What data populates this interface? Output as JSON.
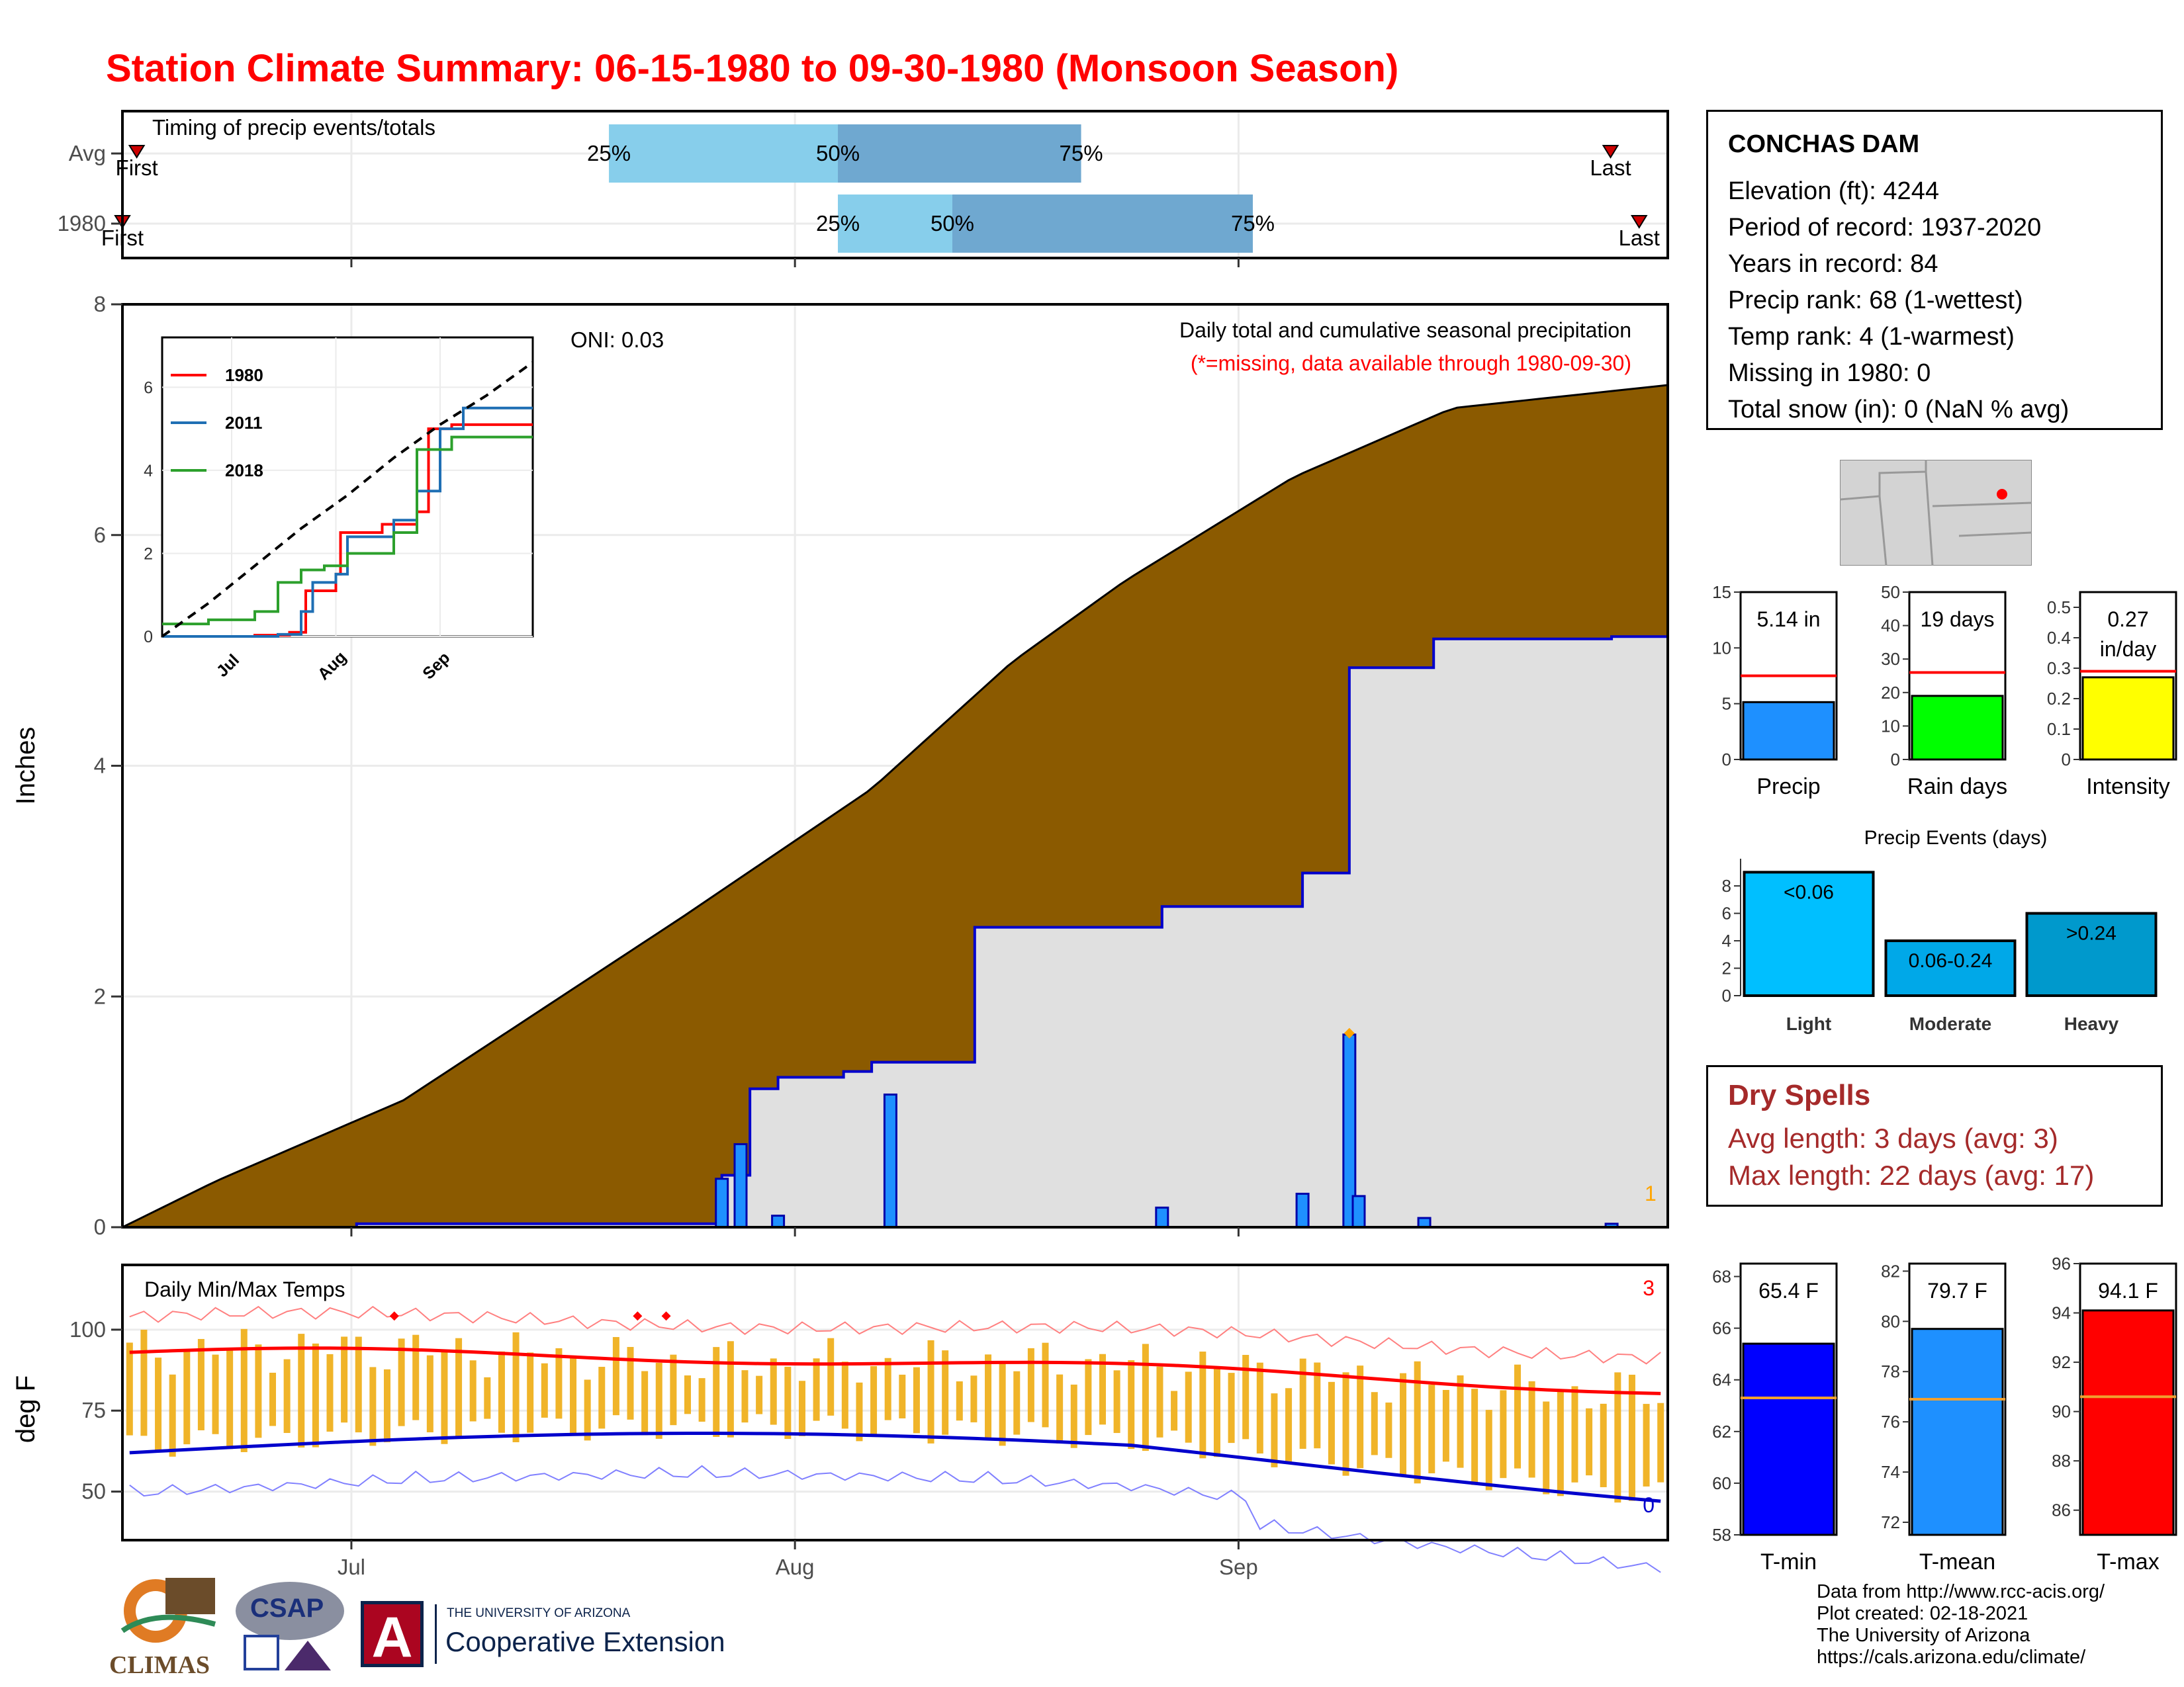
{
  "title": "Station Climate Summary: 06-15-1980 to 09-30-1980 (Monsoon Season)",
  "station": {
    "name": "CONCHAS DAM",
    "lines": [
      "Elevation (ft): 4244",
      "Period of record: 1937-2020",
      "Years in record: 84",
      "Precip rank: 68 (1-wettest)",
      "Temp rank: 4 (1-warmest)",
      "Missing in 1980: 0",
      "Total snow (in): 0 (NaN % avg)"
    ]
  },
  "dry_spells": {
    "heading": "Dry Spells",
    "avg_length": "Avg length: 3 days (avg: 3)",
    "max_length": "Max length: 22 days (avg: 17)"
  },
  "footer": {
    "lines": [
      "Data from http://www.rcc-acis.org/",
      "Plot created: 02-18-2021",
      "The University of Arizona",
      "https://cals.arizona.edu/climate/"
    ]
  },
  "logos": {
    "climas": "CLIMAS",
    "csap": "CSAP",
    "ua_top": "THE UNIVERSITY OF ARIZONA",
    "ua_bottom": "Cooperative Extension",
    "ua_letter": "A"
  },
  "colors": {
    "title": "#ff0000",
    "cumulative_avg": "#8b5a00",
    "cumulative_year": "#0000cc",
    "daily_bar": "#1e90ff",
    "temp_bar": "#f0b429",
    "tmax_avg": "#ff0000",
    "tmin_avg": "#0000cc",
    "light_blue": "#87ceeb",
    "mid_blue": "#6fa8d0",
    "dry_spell": "#a52a2a"
  },
  "chart_data": [
    {
      "id": "timing",
      "type": "bar",
      "title": "Timing of precip events/totals",
      "rows": [
        {
          "label": "Avg",
          "first": "06-17",
          "q25": "07-19",
          "q50": "08-04",
          "q75": "08-21",
          "last": "09-27",
          "first_label": "First",
          "last_label": "Last"
        },
        {
          "label": "1980",
          "first": "06-16",
          "q25": "08-04",
          "q50": "08-12",
          "q75": "09-02",
          "last": "09-29",
          "first_label": "First",
          "last_label": "Last"
        }
      ],
      "pct_labels": [
        "25%",
        "50%",
        "75%"
      ]
    },
    {
      "id": "precip",
      "type": "area",
      "ylabel": "Inches",
      "ylim": [
        0,
        8
      ],
      "yticks": [
        0,
        2,
        4,
        6,
        8
      ],
      "xticks": [
        "Jul",
        "Aug",
        "Sep"
      ],
      "annotation_title": "Daily total and cumulative seasonal precipitation",
      "annotation_missing": "(*=missing, data available through 1980-09-30)",
      "oni": "ONI: 0.03",
      "count_label": "1",
      "avg_cumulative": [
        [
          0,
          0
        ],
        [
          10,
          0.4
        ],
        [
          30,
          1.1
        ],
        [
          60,
          2.7
        ],
        [
          80,
          3.8
        ],
        [
          95,
          4.9
        ],
        [
          107,
          5.6
        ],
        [
          125,
          6.5
        ],
        [
          142,
          7.1
        ],
        [
          165,
          7.3
        ]
      ],
      "year_cumulative": [
        [
          0,
          0
        ],
        [
          25,
          0.03
        ],
        [
          63,
          0.03
        ],
        [
          64,
          0.45
        ],
        [
          67,
          1.2
        ],
        [
          70,
          1.3
        ],
        [
          77,
          1.35
        ],
        [
          80,
          1.43
        ],
        [
          91,
          2.6
        ],
        [
          111,
          2.78
        ],
        [
          126,
          3.07
        ],
        [
          131,
          4.85
        ],
        [
          140,
          5.1
        ],
        [
          159,
          5.12
        ]
      ],
      "daily": [
        [
          64,
          0.42
        ],
        [
          66,
          0.72
        ],
        [
          70,
          0.1
        ],
        [
          82,
          1.15
        ],
        [
          111,
          0.17
        ],
        [
          126,
          0.29
        ],
        [
          131,
          1.67
        ],
        [
          132,
          0.27
        ],
        [
          139,
          0.08
        ],
        [
          159,
          0.03
        ]
      ],
      "record_day": [
        131,
        1.67
      ]
    },
    {
      "id": "inset",
      "type": "line",
      "yticks": [
        0,
        2,
        4,
        6
      ],
      "xticks": [
        "Jul",
        "Aug",
        "Sep"
      ],
      "series": [
        {
          "name": "1980",
          "color": "#ff0000",
          "points": [
            [
              0,
              0
            ],
            [
              40,
              0.03
            ],
            [
              55,
              0.1
            ],
            [
              62,
              1.1
            ],
            [
              75,
              1.5
            ],
            [
              77,
              2.5
            ],
            [
              95,
              2.7
            ],
            [
              110,
              3.0
            ],
            [
              115,
              5.0
            ],
            [
              125,
              5.1
            ],
            [
              160,
              5.1
            ]
          ]
        },
        {
          "name": "2011",
          "color": "#1f6fb4",
          "points": [
            [
              0,
              0
            ],
            [
              50,
              0.05
            ],
            [
              60,
              0.6
            ],
            [
              65,
              1.3
            ],
            [
              75,
              1.5
            ],
            [
              80,
              2.4
            ],
            [
              100,
              2.8
            ],
            [
              110,
              3.5
            ],
            [
              120,
              5.0
            ],
            [
              130,
              5.5
            ],
            [
              160,
              5.5
            ]
          ]
        },
        {
          "name": "2018",
          "color": "#2ca02c",
          "points": [
            [
              0,
              0.3
            ],
            [
              20,
              0.4
            ],
            [
              40,
              0.6
            ],
            [
              50,
              1.3
            ],
            [
              60,
              1.6
            ],
            [
              70,
              1.7
            ],
            [
              80,
              2.0
            ],
            [
              100,
              2.5
            ],
            [
              110,
              4.5
            ],
            [
              125,
              4.8
            ],
            [
              160,
              4.8
            ]
          ]
        }
      ],
      "avg_points": [
        [
          0,
          0
        ],
        [
          20,
          0.8
        ],
        [
          40,
          1.7
        ],
        [
          60,
          2.6
        ],
        [
          80,
          3.4
        ],
        [
          100,
          4.3
        ],
        [
          120,
          5.1
        ],
        [
          140,
          5.8
        ],
        [
          160,
          6.6
        ]
      ]
    },
    {
      "id": "temps",
      "type": "bar",
      "title": "Daily Min/Max Temps",
      "ylabel": "deg F",
      "ylim": [
        35,
        120
      ],
      "yticks": [
        50,
        75,
        100
      ],
      "xticks": [
        "Jul",
        "Aug",
        "Sep"
      ],
      "record_high_count": "3",
      "record_low_count": "0"
    },
    {
      "id": "season_bars",
      "type": "bar",
      "panels": [
        {
          "name": "Precip",
          "label": "5.14 in",
          "value": 5.14,
          "avg": 7.5,
          "ylim": [
            0,
            15
          ],
          "yticks": [
            0,
            5,
            10,
            15
          ],
          "color": "#1e90ff"
        },
        {
          "name": "Rain days",
          "label": "19 days",
          "value": 19,
          "avg": 26,
          "ylim": [
            0,
            50
          ],
          "yticks": [
            0,
            10,
            20,
            30,
            40,
            50
          ],
          "color": "#00ff00"
        },
        {
          "name": "Intensity",
          "label": "0.27\nin/day",
          "label_top": "0.27",
          "label_bottom": "in/day",
          "value": 0.27,
          "avg": 0.29,
          "ylim": [
            0,
            0.55
          ],
          "yticks": [
            0.0,
            0.1,
            0.2,
            0.3,
            0.4,
            0.5
          ],
          "color": "#ffff00"
        }
      ]
    },
    {
      "id": "precip_events",
      "type": "bar",
      "title": "Precip Events (days)",
      "categories": [
        "Light",
        "Moderate",
        "Heavy"
      ],
      "labels": [
        "<0.06",
        "0.06-0.24",
        ">0.24"
      ],
      "values": [
        9,
        4,
        6
      ],
      "ylim": [
        0,
        9.5
      ],
      "yticks": [
        0,
        2,
        4,
        6,
        8
      ],
      "colors": [
        "#00bfff",
        "#00a8e8",
        "#0099cc"
      ]
    },
    {
      "id": "temp_bars",
      "type": "bar",
      "panels": [
        {
          "name": "T-min",
          "label": "65.4 F",
          "value": 65.4,
          "avg": 63.3,
          "ylim": [
            58,
            68.5
          ],
          "yticks": [
            58,
            60,
            62,
            64,
            66,
            68
          ],
          "color": "#0000ff"
        },
        {
          "name": "T-mean",
          "label": "79.7 F",
          "value": 79.7,
          "avg": 76.9,
          "ylim": [
            71.5,
            82.3
          ],
          "yticks": [
            72,
            74,
            76,
            78,
            80,
            82
          ],
          "color": "#1e90ff"
        },
        {
          "name": "T-max",
          "label": "94.1 F",
          "value": 94.1,
          "avg": 90.6,
          "ylim": [
            85,
            96
          ],
          "yticks": [
            86,
            88,
            90,
            92,
            94,
            96
          ],
          "color": "#ff0000"
        }
      ]
    }
  ]
}
